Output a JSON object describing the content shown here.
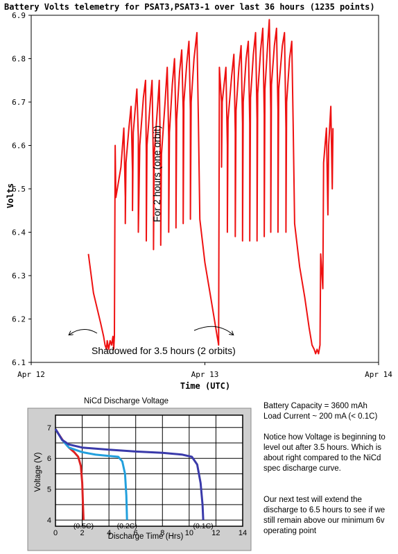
{
  "chart_data": [
    {
      "type": "line",
      "title": "Battery Volts telemetry for PSAT3,PSAT3-1 over last 36 hours (1235 points)",
      "xlabel": "Time (UTC)",
      "ylabel": "Volts",
      "x_ticks": [
        "Apr 12",
        "Apr 13",
        "Apr 14"
      ],
      "ylim": [
        6.1,
        6.9
      ],
      "y_ticks": [
        "6.1",
        "6.2",
        "6.3",
        "6.4",
        "6.5",
        "6.6",
        "6.7",
        "6.8",
        "6.9"
      ],
      "x_unit": "hours since Apr 12 00:00 UTC",
      "xlim": [
        0,
        48
      ],
      "grid": false,
      "series_color": "#ee1111",
      "annotations": {
        "orbit_label": "For 2 hours (one orbit)",
        "shadow_label": "Shadowed for 3.5  hours (2 orbits)"
      },
      "series": [
        {
          "points": [
            [
              7.9,
              6.35
            ],
            [
              8.6,
              6.26
            ],
            [
              9.6,
              6.19
            ],
            [
              10.0,
              6.16
            ],
            [
              10.2,
              6.14
            ],
            [
              10.4,
              6.13
            ],
            [
              10.5,
              6.15
            ],
            [
              10.7,
              6.13
            ],
            [
              10.9,
              6.15
            ],
            [
              11.1,
              6.14
            ],
            [
              11.3,
              6.16
            ],
            [
              11.4,
              6.13
            ],
            [
              11.5,
              6.16
            ],
            [
              11.6,
              6.6
            ],
            [
              11.7,
              6.48
            ],
            [
              12.4,
              6.55
            ],
            [
              12.8,
              6.64
            ],
            [
              13.0,
              6.48
            ],
            [
              13.0,
              6.42
            ],
            [
              13.1,
              6.56
            ],
            [
              13.5,
              6.64
            ],
            [
              13.8,
              6.69
            ],
            [
              14.0,
              6.54
            ],
            [
              14.0,
              6.45
            ],
            [
              14.1,
              6.63
            ],
            [
              14.6,
              6.73
            ],
            [
              14.8,
              6.62
            ],
            [
              14.8,
              6.4
            ],
            [
              15.0,
              6.6
            ],
            [
              15.5,
              6.71
            ],
            [
              15.8,
              6.75
            ],
            [
              15.9,
              6.58
            ],
            [
              15.9,
              6.38
            ],
            [
              16.0,
              6.6
            ],
            [
              16.5,
              6.71
            ],
            [
              16.7,
              6.75
            ],
            [
              16.9,
              6.54
            ],
            [
              16.9,
              6.36
            ],
            [
              17.0,
              6.58
            ],
            [
              17.5,
              6.7
            ],
            [
              17.7,
              6.75
            ],
            [
              17.9,
              6.52
            ],
            [
              17.9,
              6.37
            ],
            [
              18.0,
              6.58
            ],
            [
              18.5,
              6.7
            ],
            [
              18.8,
              6.78
            ],
            [
              19.0,
              6.62
            ],
            [
              19.0,
              6.4
            ],
            [
              19.1,
              6.63
            ],
            [
              19.5,
              6.74
            ],
            [
              19.8,
              6.8
            ],
            [
              20.0,
              6.64
            ],
            [
              20.0,
              6.41
            ],
            [
              20.1,
              6.66
            ],
            [
              20.5,
              6.77
            ],
            [
              20.8,
              6.82
            ],
            [
              21.0,
              6.68
            ],
            [
              21.0,
              6.42
            ],
            [
              21.1,
              6.7
            ],
            [
              21.5,
              6.79
            ],
            [
              21.8,
              6.84
            ],
            [
              22.0,
              6.68
            ],
            [
              22.0,
              6.43
            ],
            [
              22.1,
              6.7
            ],
            [
              22.5,
              6.8
            ],
            [
              22.9,
              6.86
            ],
            [
              23.1,
              6.66
            ],
            [
              23.3,
              6.43
            ],
            [
              24.0,
              6.33
            ],
            [
              24.8,
              6.25
            ],
            [
              25.4,
              6.19
            ],
            [
              25.7,
              6.16
            ],
            [
              25.8,
              6.15
            ],
            [
              25.9,
              6.14
            ],
            [
              26.0,
              6.78
            ],
            [
              26.3,
              6.7
            ],
            [
              26.3,
              6.55
            ],
            [
              26.4,
              6.7
            ],
            [
              26.9,
              6.78
            ],
            [
              27.1,
              6.6
            ],
            [
              27.1,
              6.4
            ],
            [
              27.2,
              6.66
            ],
            [
              27.7,
              6.76
            ],
            [
              28.0,
              6.81
            ],
            [
              28.2,
              6.63
            ],
            [
              28.2,
              6.39
            ],
            [
              28.3,
              6.68
            ],
            [
              28.7,
              6.78
            ],
            [
              29.0,
              6.83
            ],
            [
              29.2,
              6.65
            ],
            [
              29.2,
              6.38
            ],
            [
              29.3,
              6.7
            ],
            [
              29.7,
              6.8
            ],
            [
              30.0,
              6.84
            ],
            [
              30.2,
              6.65
            ],
            [
              30.2,
              6.38
            ],
            [
              30.3,
              6.71
            ],
            [
              30.7,
              6.81
            ],
            [
              31.0,
              6.86
            ],
            [
              31.2,
              6.66
            ],
            [
              31.2,
              6.38
            ],
            [
              31.3,
              6.72
            ],
            [
              31.7,
              6.82
            ],
            [
              32.0,
              6.87
            ],
            [
              32.2,
              6.67
            ],
            [
              32.2,
              6.39
            ],
            [
              32.3,
              6.73
            ],
            [
              32.7,
              6.84
            ],
            [
              32.9,
              6.89
            ],
            [
              33.1,
              6.68
            ],
            [
              33.1,
              6.4
            ],
            [
              33.2,
              6.74
            ],
            [
              33.6,
              6.83
            ],
            [
              33.9,
              6.87
            ],
            [
              34.1,
              6.68
            ],
            [
              34.1,
              6.4
            ],
            [
              34.2,
              6.73
            ],
            [
              34.7,
              6.83
            ],
            [
              35.0,
              6.86
            ],
            [
              35.2,
              6.64
            ],
            [
              35.2,
              6.4
            ],
            [
              35.3,
              6.7
            ],
            [
              35.7,
              6.8
            ],
            [
              36.0,
              6.84
            ],
            [
              36.2,
              6.65
            ],
            [
              36.4,
              6.42
            ],
            [
              37.1,
              6.32
            ],
            [
              37.8,
              6.25
            ],
            [
              38.4,
              6.18
            ],
            [
              38.8,
              6.14
            ],
            [
              39.1,
              6.13
            ],
            [
              39.3,
              6.12
            ],
            [
              39.5,
              6.13
            ],
            [
              39.7,
              6.12
            ],
            [
              39.9,
              6.14
            ],
            [
              40.0,
              6.35
            ],
            [
              40.3,
              6.27
            ],
            [
              40.4,
              6.56
            ],
            [
              40.8,
              6.64
            ],
            [
              41.0,
              6.44
            ],
            [
              41.1,
              6.6
            ],
            [
              41.4,
              6.69
            ],
            [
              41.6,
              6.5
            ],
            [
              41.7,
              6.64
            ]
          ]
        }
      ]
    },
    {
      "type": "line",
      "title": "NiCd Discharge Voltage",
      "xlabel": "Discharge Time (Hrs)",
      "ylabel": "Voltage (V)",
      "x_ticks": [
        "0",
        "2",
        "4",
        "6",
        "8",
        "10",
        "12",
        "14"
      ],
      "y_ticks": [
        "4",
        "5",
        "6",
        "7"
      ],
      "xlim": [
        0,
        14
      ],
      "ylim": [
        3.8,
        7.4
      ],
      "grid": true,
      "series": [
        {
          "name": "(0.5C)",
          "color": "#dd2222",
          "points": [
            [
              0,
              6.95
            ],
            [
              0.3,
              6.75
            ],
            [
              0.6,
              6.55
            ],
            [
              1.0,
              6.35
            ],
            [
              1.4,
              6.2
            ],
            [
              1.7,
              6.05
            ],
            [
              1.9,
              5.75
            ],
            [
              2.0,
              5.2
            ],
            [
              2.05,
              4.6
            ],
            [
              2.1,
              4.0
            ]
          ]
        },
        {
          "name": "(0.2C)",
          "color": "#22a0dd",
          "points": [
            [
              0,
              6.95
            ],
            [
              0.5,
              6.6
            ],
            [
              1.0,
              6.35
            ],
            [
              2.0,
              6.2
            ],
            [
              3.0,
              6.12
            ],
            [
              4.0,
              6.08
            ],
            [
              4.7,
              6.05
            ],
            [
              5.0,
              5.9
            ],
            [
              5.2,
              5.5
            ],
            [
              5.3,
              4.8
            ],
            [
              5.35,
              4.0
            ]
          ]
        },
        {
          "name": "(0.1C)",
          "color": "#3a3aaa",
          "points": [
            [
              0,
              6.95
            ],
            [
              0.5,
              6.6
            ],
            [
              1.0,
              6.45
            ],
            [
              2.0,
              6.35
            ],
            [
              4.0,
              6.28
            ],
            [
              6.0,
              6.22
            ],
            [
              8.0,
              6.18
            ],
            [
              9.5,
              6.12
            ],
            [
              10.2,
              6.05
            ],
            [
              10.6,
              5.8
            ],
            [
              10.85,
              5.2
            ],
            [
              11.0,
              4.5
            ],
            [
              11.05,
              4.0
            ]
          ]
        }
      ]
    }
  ],
  "notes": {
    "capacity": "Battery Capacity = 3600 mAh",
    "load": "Load Current ~ 200 mA (< 0.1C)",
    "para1": "Notice how Voltage is beginning to level out after 3.5 hours. Which is about right compared to the NiCd spec discharge curve.",
    "para2": "Our next test will extend the discharge to 6.5 hours to see if we still remain above our minimum 6v operating point"
  }
}
